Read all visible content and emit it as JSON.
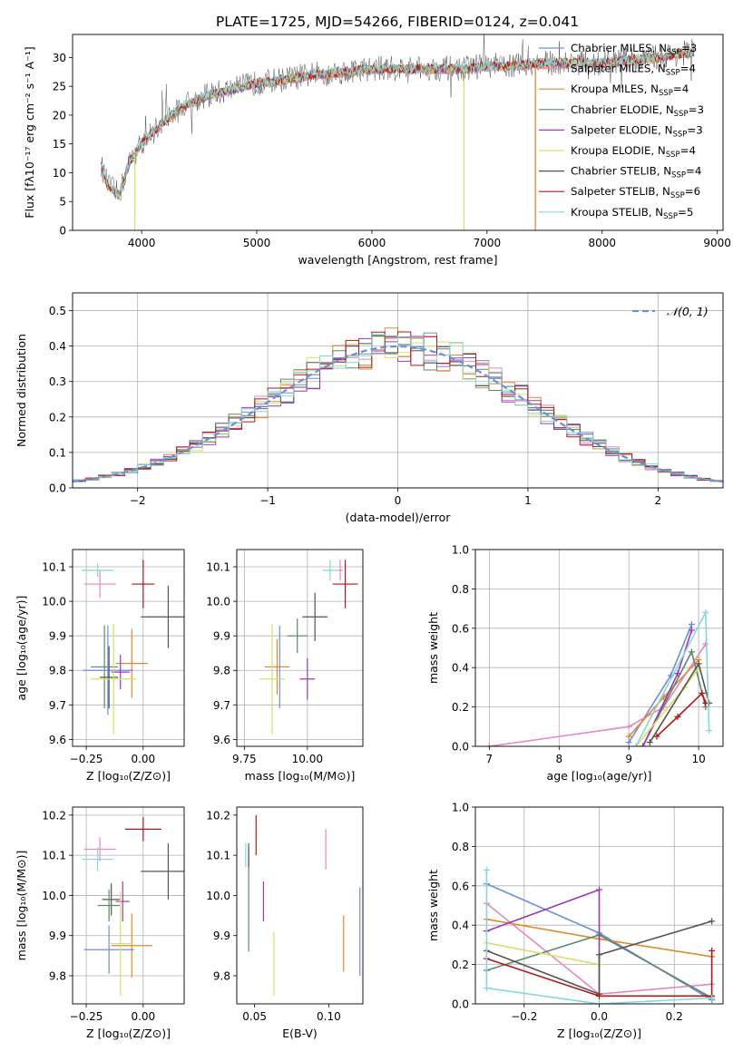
{
  "title": "PLATE=1725, MJD=54266, FIBERID=0124, z=0.041",
  "colors": [
    "#6b8fdc",
    "#e887bf",
    "#e08a30",
    "#5a8a6a",
    "#9a3ab3",
    "#d8e06a",
    "#555555",
    "#b01818",
    "#86d8d8"
  ],
  "chart_data": [
    {
      "id": "spectrum",
      "type": "line",
      "xlabel": "wavelength [Angstrom, rest frame]",
      "ylabel": "Flux [fλ10⁻¹⁷ erg cm⁻² s⁻¹ A⁻¹]",
      "xlim": [
        3400,
        9050
      ],
      "ylim": [
        0,
        34
      ],
      "xticks": [
        4000,
        5000,
        6000,
        7000,
        8000,
        9000
      ],
      "yticks": [
        0,
        5,
        10,
        15,
        20,
        25,
        30
      ],
      "grid": false,
      "legend_position": "top-right",
      "legend": [
        {
          "name": "Chabrier MILES, N",
          "sub": "SSP",
          "val": "=3"
        },
        {
          "name": "Salpeter MILES, N",
          "sub": "SSP",
          "val": "=4"
        },
        {
          "name": "Kroupa MILES, N",
          "sub": "SSP",
          "val": "=4"
        },
        {
          "name": "Chabrier ELODIE, N",
          "sub": "SSP",
          "val": "=3"
        },
        {
          "name": "Salpeter ELODIE, N",
          "sub": "SSP",
          "val": "=3"
        },
        {
          "name": "Kroupa ELODIE, N",
          "sub": "SSP",
          "val": "=4"
        },
        {
          "name": "Chabrier STELIB, N",
          "sub": "SSP",
          "val": "=4"
        },
        {
          "name": "Salpeter STELIB, N",
          "sub": "SSP",
          "val": "=6"
        },
        {
          "name": "Kroupa STELIB, N",
          "sub": "SSP",
          "val": "=5"
        }
      ],
      "continuum": [
        [
          3650,
          11
        ],
        [
          3700,
          8
        ],
        [
          3800,
          6
        ],
        [
          3900,
          12
        ],
        [
          4000,
          15
        ],
        [
          4200,
          19
        ],
        [
          4400,
          22
        ],
        [
          4600,
          23.5
        ],
        [
          4800,
          24.5
        ],
        [
          5000,
          25.5
        ],
        [
          5200,
          26
        ],
        [
          5500,
          27
        ],
        [
          5800,
          27.5
        ],
        [
          6000,
          28
        ],
        [
          6200,
          28
        ],
        [
          6500,
          28
        ],
        [
          6800,
          28
        ],
        [
          7000,
          28.5
        ],
        [
          7200,
          28.5
        ],
        [
          7500,
          29
        ],
        [
          8000,
          29
        ],
        [
          8500,
          30
        ],
        [
          8800,
          31
        ]
      ],
      "dropouts": [
        {
          "x": 3940,
          "color": "#d8e06a"
        },
        {
          "x": 6800,
          "color": "#d8e06a"
        },
        {
          "x": 7420,
          "color": "#e08a30"
        }
      ]
    },
    {
      "id": "residuals",
      "type": "histogram",
      "xlabel": "(data-model)/error",
      "ylabel": "Normed distribution",
      "xlim": [
        -2.5,
        2.5
      ],
      "ylim": [
        0,
        0.55
      ],
      "xticks": [
        -2,
        -1,
        0,
        1,
        2
      ],
      "yticks": [
        0.0,
        0.1,
        0.2,
        0.3,
        0.4,
        0.5
      ],
      "grid": true,
      "bin_width": 0.1,
      "reference_curve": {
        "label": "𝒩(0, 1)",
        "type": "gaussian",
        "mean": 0,
        "sigma": 1
      },
      "legend_position": "top-right"
    },
    {
      "id": "age_vs_Z",
      "type": "scatter_errorbar",
      "xlabel": "Z [log₁₀(Z/Z⊙)]",
      "ylabel": "age  [log₁₀(age/yr)]",
      "xlim": [
        -0.31,
        0.18
      ],
      "ylim": [
        9.58,
        10.15
      ],
      "xticks": [
        -0.25,
        0.0
      ],
      "yticks": [
        9.6,
        9.7,
        9.8,
        9.9,
        10.0,
        10.1
      ],
      "grid": true,
      "points": [
        {
          "x": -0.2,
          "y": 10.09,
          "xerr": 0.07,
          "yerr": 0.02,
          "c": 8
        },
        {
          "x": -0.19,
          "y": 10.05,
          "xerr": 0.07,
          "yerr": 0.04,
          "c": 1
        },
        {
          "x": 0.0,
          "y": 10.05,
          "xerr": 0.05,
          "yerr": 0.07,
          "c": 7
        },
        {
          "x": 0.11,
          "y": 9.955,
          "xerr": 0.12,
          "yerr": 0.09,
          "c": 6
        },
        {
          "x": -0.17,
          "y": 9.81,
          "xerr": 0.06,
          "yerr": 0.12,
          "c": 3
        },
        {
          "x": -0.05,
          "y": 9.82,
          "xerr": 0.07,
          "yerr": 0.1,
          "c": 2
        },
        {
          "x": -0.155,
          "y": 9.8,
          "xerr": 0.11,
          "yerr": 0.13,
          "c": 0
        },
        {
          "x": -0.1,
          "y": 9.795,
          "xerr": 0.04,
          "yerr": 0.05,
          "c": 4
        },
        {
          "x": -0.15,
          "y": 9.78,
          "xerr": 0.04,
          "yerr": 0.09,
          "c": 6
        },
        {
          "x": -0.13,
          "y": 9.775,
          "xerr": 0.1,
          "yerr": 0.16,
          "c": 5
        }
      ]
    },
    {
      "id": "age_vs_mass",
      "type": "scatter_errorbar",
      "xlabel": "mass [log₁₀(M/M⊙)]",
      "ylabel": "",
      "xlim": [
        9.72,
        10.22
      ],
      "ylim": [
        9.58,
        10.15
      ],
      "xticks": [
        9.75,
        10.0
      ],
      "yticks": [
        9.6,
        9.7,
        9.8,
        9.9,
        10.0,
        10.1
      ],
      "grid": true,
      "points": [
        {
          "x": 10.09,
          "y": 10.09,
          "xerr": 0.03,
          "yerr": 0.03,
          "c": 8
        },
        {
          "x": 10.13,
          "y": 10.09,
          "xerr": 0.01,
          "yerr": 0.03,
          "c": 1
        },
        {
          "x": 10.15,
          "y": 10.05,
          "xerr": 0.05,
          "yerr": 0.07,
          "c": 7
        },
        {
          "x": 10.03,
          "y": 9.955,
          "xerr": 0.05,
          "yerr": 0.07,
          "c": 6
        },
        {
          "x": 9.96,
          "y": 9.9,
          "xerr": 0.04,
          "yerr": 0.05,
          "c": 3
        },
        {
          "x": 9.89,
          "y": 9.81,
          "xerr": 0.03,
          "yerr": 0.12,
          "c": 0
        },
        {
          "x": 9.88,
          "y": 9.81,
          "xerr": 0.05,
          "yerr": 0.08,
          "c": 2
        },
        {
          "x": 10.0,
          "y": 9.775,
          "xerr": 0.03,
          "yerr": 0.06,
          "c": 4
        },
        {
          "x": 9.86,
          "y": 9.775,
          "xerr": 0.05,
          "yerr": 0.16,
          "c": 5
        }
      ]
    },
    {
      "id": "age_weights",
      "type": "line",
      "xlabel": "age  [log₁₀(age/yr)]",
      "ylabel": "mass weight",
      "xlim": [
        6.8,
        10.35
      ],
      "ylim": [
        0.0,
        1.0
      ],
      "xticks": [
        7,
        8,
        9,
        10
      ],
      "yticks": [
        0.0,
        0.2,
        0.4,
        0.6,
        0.8,
        1.0
      ],
      "grid": true,
      "series": [
        {
          "c": 0,
          "points": [
            [
              9.0,
              0.02
            ],
            [
              9.6,
              0.36
            ],
            [
              9.9,
              0.62
            ]
          ]
        },
        {
          "c": 1,
          "points": [
            [
              7.0,
              0.0
            ],
            [
              9.0,
              0.1
            ],
            [
              9.5,
              0.2
            ],
            [
              10.1,
              0.52
            ]
          ]
        },
        {
          "c": 2,
          "points": [
            [
              9.0,
              0.05
            ],
            [
              9.5,
              0.25
            ],
            [
              10.0,
              0.44
            ]
          ]
        },
        {
          "c": 3,
          "points": [
            [
              9.2,
              0.0
            ],
            [
              9.9,
              0.48
            ],
            [
              10.1,
              0.2
            ]
          ]
        },
        {
          "c": 4,
          "points": [
            [
              9.2,
              0.0
            ],
            [
              9.7,
              0.37
            ],
            [
              9.9,
              0.59
            ]
          ]
        },
        {
          "c": 5,
          "points": [
            [
              9.1,
              0.0
            ],
            [
              9.8,
              0.3
            ],
            [
              10.0,
              0.4
            ]
          ]
        },
        {
          "c": 6,
          "points": [
            [
              9.3,
              0.02
            ],
            [
              10.0,
              0.42
            ],
            [
              10.15,
              0.22
            ]
          ]
        },
        {
          "c": 7,
          "points": [
            [
              9.4,
              0.05
            ],
            [
              9.7,
              0.15
            ],
            [
              10.05,
              0.27
            ],
            [
              10.1,
              0.22
            ]
          ]
        },
        {
          "c": 8,
          "points": [
            [
              9.1,
              0.0
            ],
            [
              10.1,
              0.68
            ],
            [
              10.15,
              0.08
            ]
          ]
        }
      ]
    },
    {
      "id": "mass_vs_Z",
      "type": "scatter_errorbar",
      "xlabel": "Z [log₁₀(Z/Z⊙)]",
      "ylabel": "mass [log₁₀(M/M⊙)]",
      "xlim": [
        -0.31,
        0.18
      ],
      "ylim": [
        9.73,
        10.22
      ],
      "xticks": [
        -0.25,
        0.0
      ],
      "yticks": [
        9.8,
        9.9,
        10.0,
        10.1,
        10.2
      ],
      "grid": true,
      "points": [
        {
          "x": -0.19,
          "y": 10.115,
          "xerr": 0.07,
          "yerr": 0.03,
          "c": 1
        },
        {
          "x": -0.2,
          "y": 10.09,
          "xerr": 0.07,
          "yerr": 0.03,
          "c": 8
        },
        {
          "x": 0.0,
          "y": 10.165,
          "xerr": 0.08,
          "yerr": 0.03,
          "c": 7
        },
        {
          "x": 0.11,
          "y": 10.06,
          "xerr": 0.12,
          "yerr": 0.07,
          "c": 6
        },
        {
          "x": -0.14,
          "y": 9.99,
          "xerr": 0.04,
          "yerr": 0.04,
          "c": 6
        },
        {
          "x": -0.15,
          "y": 9.975,
          "xerr": 0.05,
          "yerr": 0.04,
          "c": 3
        },
        {
          "x": -0.09,
          "y": 9.985,
          "xerr": 0.03,
          "yerr": 0.05,
          "c": 4
        },
        {
          "x": -0.05,
          "y": 9.875,
          "xerr": 0.09,
          "yerr": 0.08,
          "c": 2
        },
        {
          "x": -0.15,
          "y": 9.865,
          "xerr": 0.11,
          "yerr": 0.06,
          "c": 0
        },
        {
          "x": -0.1,
          "y": 9.88,
          "xerr": 0.05,
          "yerr": 0.13,
          "c": 5
        }
      ]
    },
    {
      "id": "mass_vs_ebv",
      "type": "scatter_errorbar",
      "xlabel": "E(B-V)",
      "ylabel": "",
      "xlim": [
        0.038,
        0.123
      ],
      "ylim": [
        9.73,
        10.22
      ],
      "xticks": [
        0.05,
        0.1
      ],
      "yticks": [
        9.8,
        9.9,
        10.0,
        10.1,
        10.2
      ],
      "grid": false,
      "points": [
        {
          "x": 0.044,
          "y": 10.1,
          "xerr": 0,
          "yerr": 0.03,
          "c": 8
        },
        {
          "x": 0.046,
          "y": 9.99,
          "xerr": 0,
          "yerr": 0.13,
          "c": 3
        },
        {
          "x": 0.046,
          "y": 10.1,
          "xerr": 0,
          "yerr": 0.03,
          "c": 6
        },
        {
          "x": 0.051,
          "y": 10.15,
          "xerr": 0,
          "yerr": 0.05,
          "c": 7
        },
        {
          "x": 0.056,
          "y": 9.985,
          "xerr": 0,
          "yerr": 0.05,
          "c": 4
        },
        {
          "x": 0.063,
          "y": 9.83,
          "xerr": 0,
          "yerr": 0.08,
          "c": 5
        },
        {
          "x": 0.098,
          "y": 10.115,
          "xerr": 0,
          "yerr": 0.05,
          "c": 1
        },
        {
          "x": 0.11,
          "y": 9.88,
          "xerr": 0,
          "yerr": 0.07,
          "c": 2
        },
        {
          "x": 0.121,
          "y": 9.91,
          "xerr": 0,
          "yerr": 0.11,
          "c": 0
        }
      ]
    },
    {
      "id": "Z_weights",
      "type": "line",
      "xlabel": "Z [log₁₀(Z/Z⊙)]",
      "ylabel": "mass weight",
      "xlim": [
        -0.33,
        0.33
      ],
      "ylim": [
        0.0,
        1.0
      ],
      "xticks": [
        -0.2,
        0.0,
        0.2
      ],
      "yticks": [
        0.0,
        0.2,
        0.4,
        0.6,
        0.8,
        1.0
      ],
      "grid": true,
      "series": [
        {
          "c": 0,
          "points": [
            [
              -0.3,
              0.61
            ],
            [
              0.0,
              0.36
            ],
            [
              0.3,
              0.02
            ]
          ]
        },
        {
          "c": 1,
          "points": [
            [
              -0.3,
              0.51
            ],
            [
              0.0,
              0.05
            ],
            [
              0.3,
              0.1
            ]
          ]
        },
        {
          "c": 2,
          "points": [
            [
              -0.3,
              0.43
            ],
            [
              0.0,
              0.33
            ],
            [
              0.3,
              0.24
            ]
          ]
        },
        {
          "c": 3,
          "points": [
            [
              -0.3,
              0.17
            ],
            [
              0.0,
              0.35
            ],
            [
              0.3,
              0.03
            ]
          ]
        },
        {
          "c": 4,
          "points": [
            [
              -0.3,
              0.37
            ],
            [
              0.0,
              0.58
            ],
            [
              0.0,
              0.05
            ]
          ]
        },
        {
          "c": 5,
          "points": [
            [
              -0.3,
              0.31
            ],
            [
              0.0,
              0.2
            ],
            [
              0.0,
              0.05
            ]
          ]
        },
        {
          "c": 6,
          "points": [
            [
              -0.3,
              0.27
            ],
            [
              0.0,
              0.05
            ],
            [
              0.0,
              0.25
            ],
            [
              0.3,
              0.42
            ]
          ]
        },
        {
          "c": 7,
          "points": [
            [
              -0.3,
              0.23
            ],
            [
              0.0,
              0.04
            ],
            [
              0.3,
              0.04
            ],
            [
              0.3,
              0.27
            ]
          ]
        },
        {
          "c": 8,
          "points": [
            [
              -0.3,
              0.68
            ],
            [
              -0.3,
              0.08
            ],
            [
              0.0,
              0.0
            ],
            [
              0.3,
              0.03
            ]
          ]
        }
      ]
    }
  ]
}
